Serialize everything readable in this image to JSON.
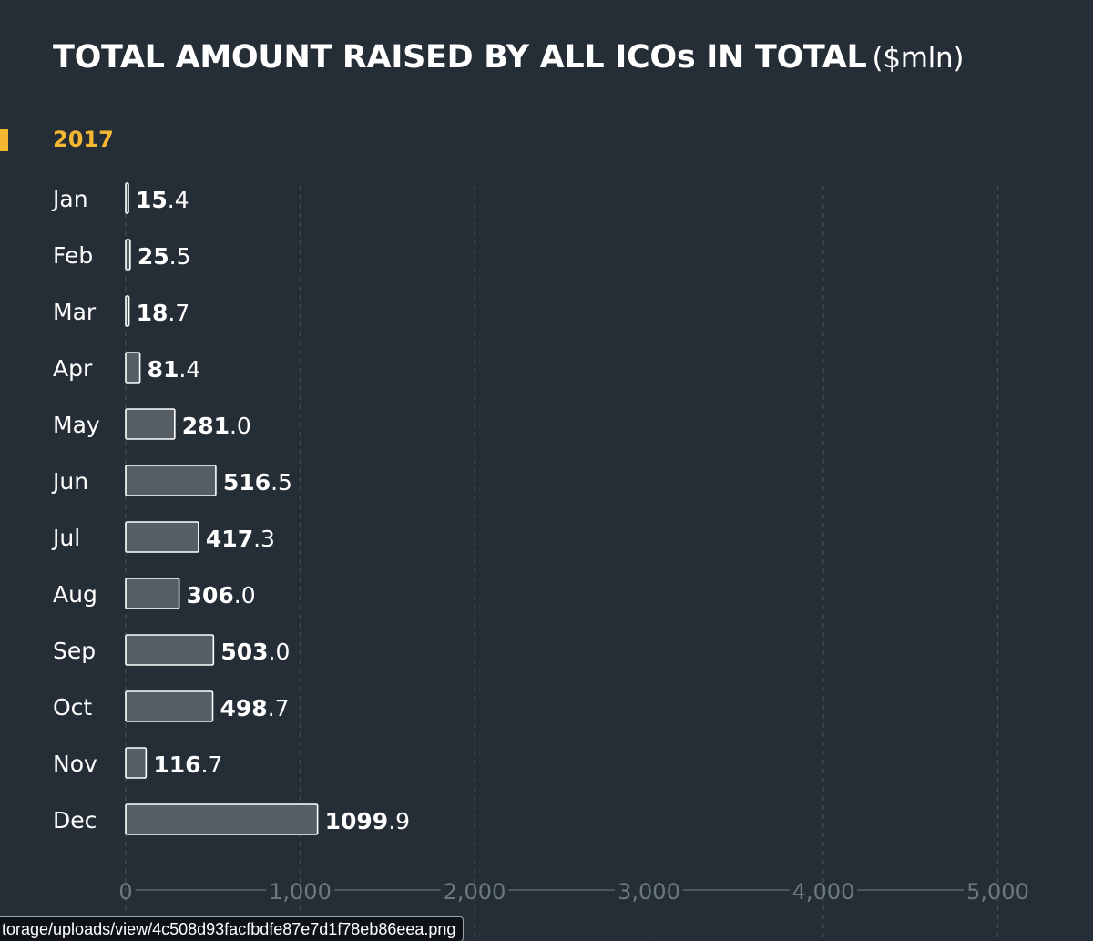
{
  "title": {
    "main": "TOTAL AMOUNT RAISED BY ALL ICOs IN TOTAL",
    "unit": "($mln)"
  },
  "colors": {
    "background": "#252e36",
    "accent": "#f5b731",
    "bar_fill": "#565e65",
    "bar_stroke": "#ffffff",
    "text": "#ffffff",
    "grid": "#3e4d58",
    "axis": "#58666f",
    "tick_text": "#6a7880"
  },
  "chart_data": {
    "type": "bar",
    "orientation": "horizontal",
    "title": "TOTAL AMOUNT RAISED BY ALL ICOs IN TOTAL",
    "unit": "($mln)",
    "group_label": "2017",
    "categories": [
      "Jan",
      "Feb",
      "Mar",
      "Apr",
      "May",
      "Jun",
      "Jul",
      "Aug",
      "Sep",
      "Oct",
      "Nov",
      "Dec"
    ],
    "values": [
      15.4,
      25.5,
      18.7,
      81.4,
      281.0,
      516.5,
      417.3,
      306.0,
      503.0,
      498.7,
      116.7,
      1099.9
    ],
    "value_labels": [
      {
        "int": "15",
        "dec": ".4"
      },
      {
        "int": "25",
        "dec": ".5"
      },
      {
        "int": "18",
        "dec": ".7"
      },
      {
        "int": "81",
        "dec": ".4"
      },
      {
        "int": "281",
        "dec": ".0"
      },
      {
        "int": "516",
        "dec": ".5"
      },
      {
        "int": "417",
        "dec": ".3"
      },
      {
        "int": "306",
        "dec": ".0"
      },
      {
        "int": "503",
        "dec": ".0"
      },
      {
        "int": "498",
        "dec": ".7"
      },
      {
        "int": "116",
        "dec": ".7"
      },
      {
        "int": "1099",
        "dec": ".9"
      }
    ],
    "xlim": [
      0,
      5000
    ],
    "xticks": [
      0,
      1000,
      2000,
      3000,
      4000,
      5000
    ],
    "xtick_labels": [
      "0",
      "1,000",
      "2,000",
      "3,000",
      "4,000",
      "5,000"
    ],
    "grid": "vertical dashed",
    "xlabel": "",
    "ylabel": ""
  },
  "tooltip": {
    "url": "torage/uploads/view/4c508d93facfbdfe87e7d1f78eb86eea.png"
  }
}
